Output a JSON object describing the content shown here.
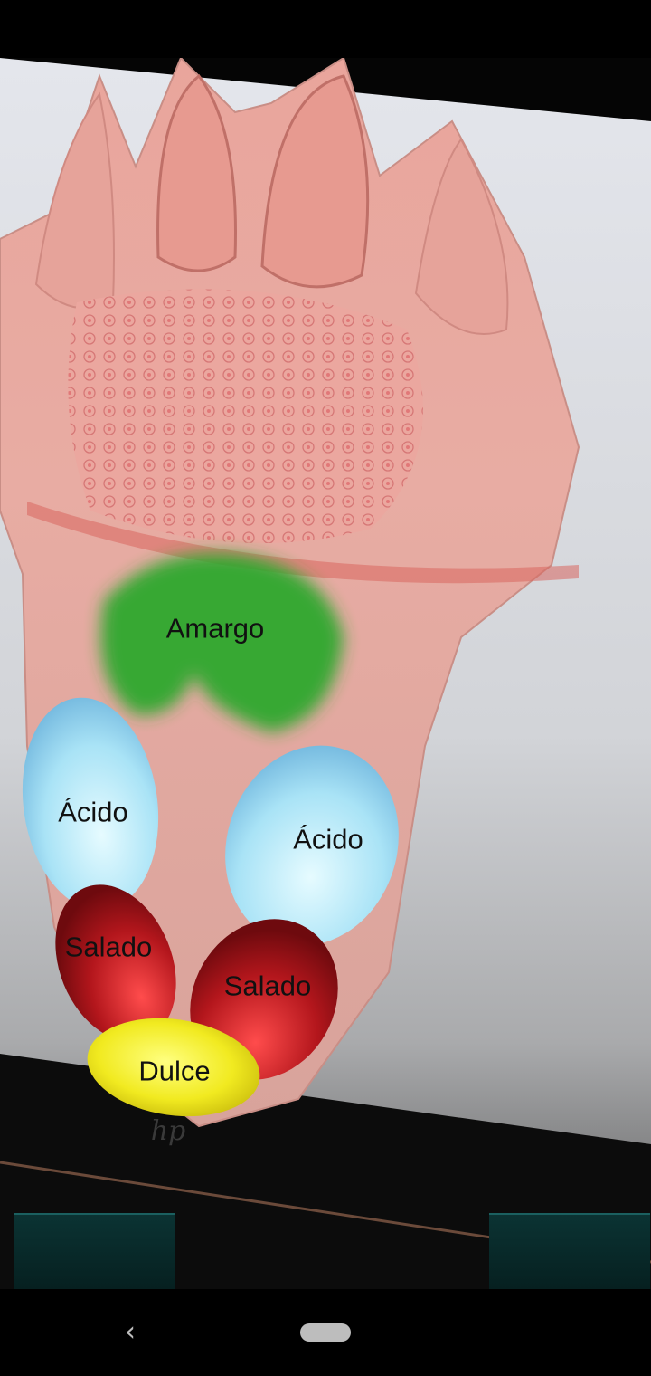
{
  "ar_scene": {
    "subject": "tongue taste zones model",
    "zones": {
      "bitter": {
        "label": "Amargo",
        "color": "#2ea82e"
      },
      "sour_left": {
        "label": "Ácido",
        "color": "#a8e4f6"
      },
      "sour_right": {
        "label": "Ácido",
        "color": "#a8e4f6"
      },
      "salty_left": {
        "label": "Salado",
        "color": "#b3161c"
      },
      "salty_right": {
        "label": "Salado",
        "color": "#b3161c"
      },
      "sweet": {
        "label": "Dulce",
        "color": "#f1ea20"
      }
    }
  },
  "icons": {
    "back": "‹"
  }
}
